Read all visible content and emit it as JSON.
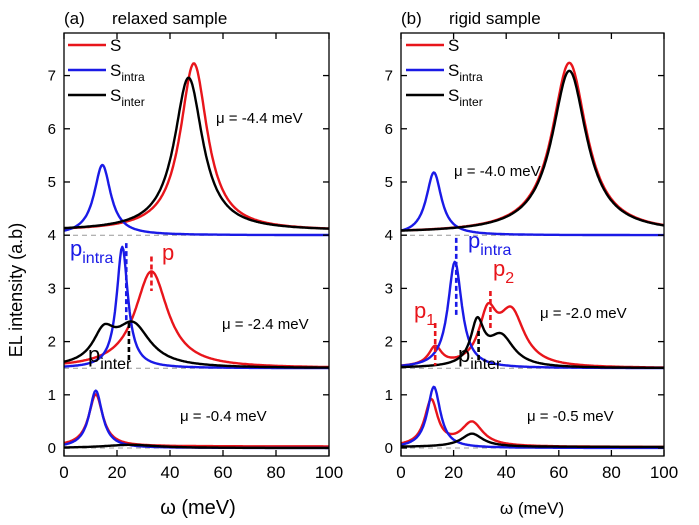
{
  "figure": {
    "ylabel": "EL intensity (a.b)",
    "xlabel_left": "ω (meV)",
    "xlabel_right": "ω (meV)",
    "y_ticks": [
      "0",
      "1",
      "2",
      "3",
      "4",
      "5",
      "6",
      "7"
    ],
    "x_ticks": [
      "0",
      "20",
      "40",
      "60",
      "80",
      "100"
    ]
  },
  "colors": {
    "S": "#e8151b",
    "S_intra": "#1a1ae6",
    "S_inter": "#000000",
    "baseline": "#999999"
  },
  "chart_data": [
    {
      "type": "line",
      "panel_label": "(a)",
      "title": "relaxed sample",
      "xlim": [
        0,
        100
      ],
      "ylim": [
        -0.15,
        7.8
      ],
      "legend": {
        "placement": "top-left",
        "entries": [
          {
            "key": "S",
            "label": "S",
            "sub": ""
          },
          {
            "key": "S_intra",
            "label": "S",
            "sub": "intra"
          },
          {
            "key": "S_inter",
            "label": "S",
            "sub": "inter"
          }
        ]
      },
      "offsets": [
        {
          "mu_label": "μ = -4.4 meV",
          "baseline": 4,
          "series": [
            {
              "key": "S",
              "peaks": [
                {
                  "x0": 49,
                  "g": 6.2,
                  "A": 3.15
                }
              ],
              "bg": 0.08
            },
            {
              "key": "S_intra",
              "peaks": [
                {
                  "x0": 14.5,
                  "g": 3.8,
                  "A": 1.32
                }
              ],
              "bg": 0
            },
            {
              "key": "S_inter",
              "peaks": [
                {
                  "x0": 47,
                  "g": 6.5,
                  "A": 2.88
                }
              ],
              "bg": 0.08
            }
          ]
        },
        {
          "mu_label": "μ = -2.4 meV",
          "baseline": 1.5,
          "series": [
            {
              "key": "S",
              "peaks": [
                {
                  "x0": 33,
                  "g": 7.5,
                  "A": 1.82
                }
              ],
              "bg": 0
            },
            {
              "key": "S_intra",
              "peaks": [
                {
                  "x0": 22,
                  "g": 2.6,
                  "A": 2.28
                }
              ],
              "bg": 0
            },
            {
              "key": "S_inter",
              "peaks": [
                {
                  "x0": 15,
                  "g": 5,
                  "A": 0.55
                },
                {
                  "x0": 26,
                  "g": 8,
                  "A": 0.78
                }
              ],
              "bg": 0
            }
          ],
          "markers": [
            {
              "key": "S_intra",
              "text": "p",
              "sub": "intra",
              "x": 23.5,
              "y_from": 3.85,
              "y_to": 2.35
            },
            {
              "key": "S",
              "text": "p",
              "sub": "",
              "x": 33,
              "y_from": 3.6,
              "y_to": 2.95
            },
            {
              "key": "S_inter",
              "text": "p",
              "sub": "inter",
              "x": 24.5,
              "y_from": 2.35,
              "y_to": 1.65
            }
          ]
        },
        {
          "mu_label": "μ = -0.4 meV",
          "baseline": 0,
          "series": [
            {
              "key": "S",
              "peaks": [
                {
                  "x0": 12,
                  "g": 3.2,
                  "A": 0.98
                }
              ],
              "bg": 0.03
            },
            {
              "key": "S_intra",
              "peaks": [
                {
                  "x0": 12,
                  "g": 3.0,
                  "A": 1.08
                }
              ],
              "bg": 0
            },
            {
              "key": "S_inter",
              "peaks": [
                {
                  "x0": 25,
                  "g": 12,
                  "A": 0.06
                }
              ],
              "bg": 0
            }
          ]
        }
      ]
    },
    {
      "type": "line",
      "panel_label": "(b)",
      "title": "rigid sample",
      "xlim": [
        0,
        100
      ],
      "ylim": [
        -0.15,
        7.8
      ],
      "legend": {
        "placement": "top-left",
        "entries": [
          {
            "key": "S",
            "label": "S",
            "sub": ""
          },
          {
            "key": "S_intra",
            "label": "S",
            "sub": "intra"
          },
          {
            "key": "S_inter",
            "label": "S",
            "sub": "inter"
          }
        ]
      },
      "offsets": [
        {
          "mu_label": "μ = -4.0 meV",
          "baseline": 4,
          "series": [
            {
              "key": "S",
              "peaks": [
                {
                  "x0": 64,
                  "g": 8,
                  "A": 3.2
                }
              ],
              "bg": 0.04
            },
            {
              "key": "S_intra",
              "peaks": [
                {
                  "x0": 12.5,
                  "g": 3.5,
                  "A": 1.18
                }
              ],
              "bg": 0
            },
            {
              "key": "S_inter",
              "peaks": [
                {
                  "x0": 64,
                  "g": 8,
                  "A": 3.05
                }
              ],
              "bg": 0.04
            }
          ]
        },
        {
          "mu_label": "μ = -2.0 meV",
          "baseline": 1.5,
          "series": [
            {
              "key": "S",
              "peaks": [
                {
                  "x0": 13,
                  "g": 3,
                  "A": 0.35
                },
                {
                  "x0": 33,
                  "g": 4,
                  "A": 0.9
                },
                {
                  "x0": 42,
                  "g": 6,
                  "A": 1.0
                }
              ],
              "bg": 0
            },
            {
              "key": "S_intra",
              "peaks": [
                {
                  "x0": 20.5,
                  "g": 3.2,
                  "A": 2.0
                }
              ],
              "bg": 0
            },
            {
              "key": "S_inter",
              "peaks": [
                {
                  "x0": 29,
                  "g": 3,
                  "A": 0.78
                },
                {
                  "x0": 38,
                  "g": 6,
                  "A": 0.58
                }
              ],
              "bg": 0
            }
          ],
          "markers": [
            {
              "key": "S_intra",
              "text": "p",
              "sub": "intra",
              "x": 21,
              "y_from": 3.95,
              "y_to": 2.5
            },
            {
              "key": "S",
              "text": "p",
              "sub": "1",
              "x": 13,
              "y_from": 2.35,
              "y_to": 1.55
            },
            {
              "key": "S",
              "text": "p",
              "sub": "2",
              "x": 34,
              "y_from": 2.95,
              "y_to": 2.2
            },
            {
              "key": "S_inter",
              "text": "p",
              "sub": "inter",
              "x": 29.5,
              "y_from": 2.2,
              "y_to": 1.6
            }
          ]
        },
        {
          "mu_label": "μ = -0.5 meV",
          "baseline": 0,
          "series": [
            {
              "key": "S",
              "peaks": [
                {
                  "x0": 11.5,
                  "g": 3,
                  "A": 0.86
                },
                {
                  "x0": 27,
                  "g": 5,
                  "A": 0.45
                }
              ],
              "bg": 0.02
            },
            {
              "key": "S_intra",
              "peaks": [
                {
                  "x0": 12.5,
                  "g": 3,
                  "A": 1.15
                }
              ],
              "bg": 0
            },
            {
              "key": "S_inter",
              "peaks": [
                {
                  "x0": 27,
                  "g": 5,
                  "A": 0.25
                }
              ],
              "bg": 0.02
            }
          ]
        }
      ]
    }
  ]
}
